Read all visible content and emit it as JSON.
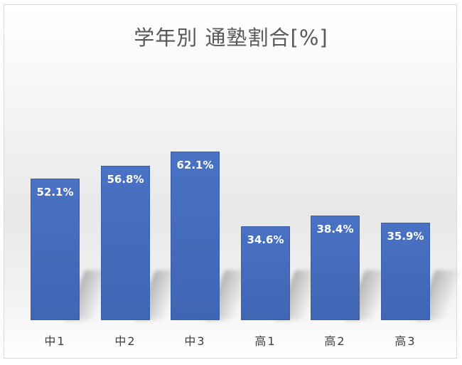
{
  "chart_data": {
    "type": "bar",
    "title": "学年別 通塾割合[%]",
    "categories": [
      "中1",
      "中2",
      "中3",
      "高1",
      "高2",
      "高3"
    ],
    "values": [
      52.1,
      56.8,
      62.1,
      34.6,
      38.4,
      35.9
    ],
    "value_labels": [
      "52.1%",
      "56.8%",
      "62.1%",
      "34.6%",
      "38.4%",
      "35.9%"
    ],
    "xlabel": "",
    "ylabel": "",
    "ylim": [
      0,
      70
    ],
    "grid": false,
    "legend": "none",
    "bar_color": "#4472C4"
  }
}
